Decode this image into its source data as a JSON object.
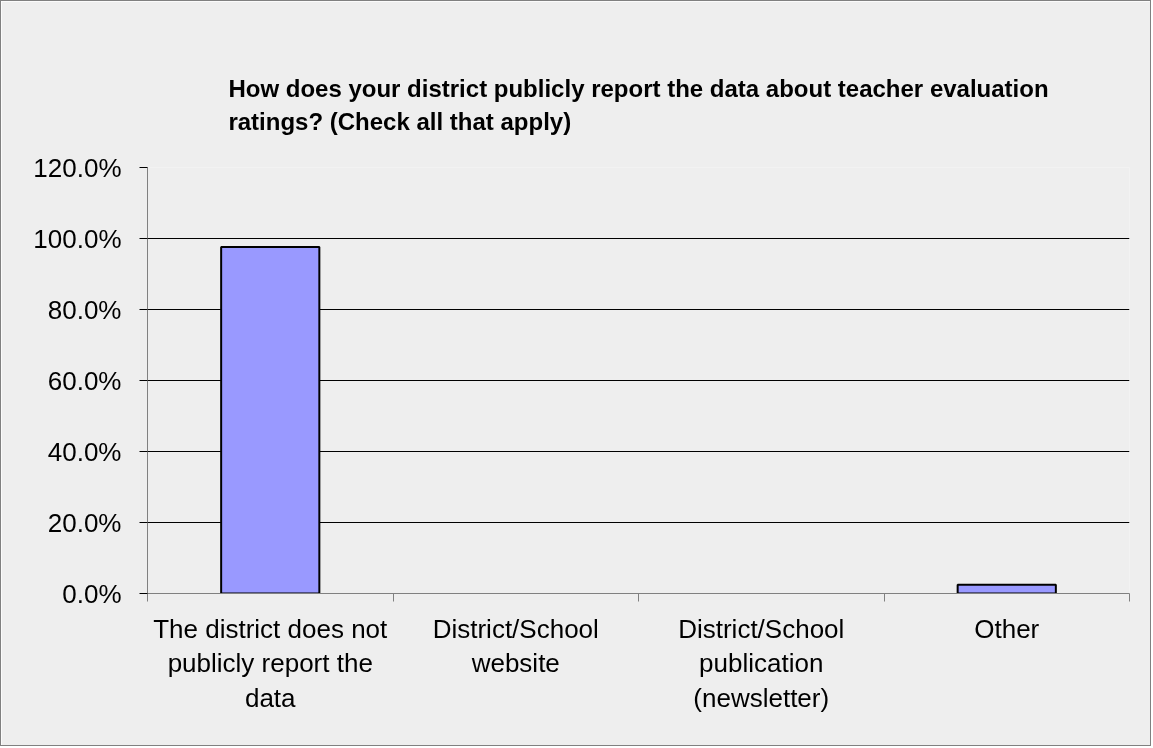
{
  "chart_data": {
    "type": "bar",
    "title": "How does your district publicly report the data about teacher evaluation ratings? (Check all that apply)",
    "categories": [
      "The district does not publicly report the data",
      "District/School website",
      "District/School publication (newsletter)",
      "Other"
    ],
    "values": [
      97.6,
      null,
      null,
      2.5
    ],
    "color": "#9999ff",
    "ylim": [
      0,
      120
    ],
    "yticks": [
      {
        "value": 0,
        "label": "0.0%"
      },
      {
        "value": 20,
        "label": "20.0%"
      },
      {
        "value": 40,
        "label": "40.0%"
      },
      {
        "value": 60,
        "label": "60.0%"
      },
      {
        "value": 80,
        "label": "80.0%"
      },
      {
        "value": 100,
        "label": "100.0%"
      },
      {
        "value": 120,
        "label": "120.0%"
      }
    ],
    "grid": "y"
  }
}
